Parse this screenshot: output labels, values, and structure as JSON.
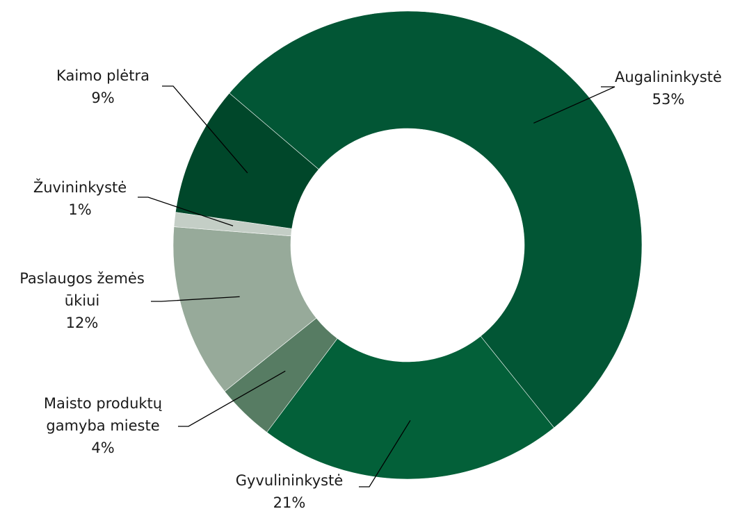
{
  "chart_data": {
    "type": "pie",
    "donut": true,
    "categories": [
      "Augalininkystė",
      "Gyvulininkystė",
      "Maisto produktų gamyba mieste",
      "Paslaugos žemės ūkiui",
      "Žuvininkystė",
      "Kaimo plėtra"
    ],
    "values": [
      53,
      21,
      4,
      12,
      1,
      9
    ],
    "value_labels": [
      "53%",
      "21%",
      "4%",
      "12%",
      "1%",
      "9%"
    ],
    "colors": [
      "#025635",
      "#036039",
      "#577c63",
      "#97aa9a",
      "#c4cec6",
      "#00472a"
    ],
    "legend": "none",
    "data_labels": [
      {
        "lines": [
          "Augalininkystė",
          "53%"
        ]
      },
      {
        "lines": [
          "Gyvulininkystė",
          "21%"
        ]
      },
      {
        "lines": [
          "Maisto produktų",
          "gamyba mieste",
          "4%"
        ]
      },
      {
        "lines": [
          "Paslaugos žemės",
          "ūkiui",
          "12%"
        ]
      },
      {
        "lines": [
          "Žuvininkystė",
          "1%"
        ]
      },
      {
        "lines": [
          "Kaimo plėtra",
          "9%"
        ]
      }
    ]
  }
}
